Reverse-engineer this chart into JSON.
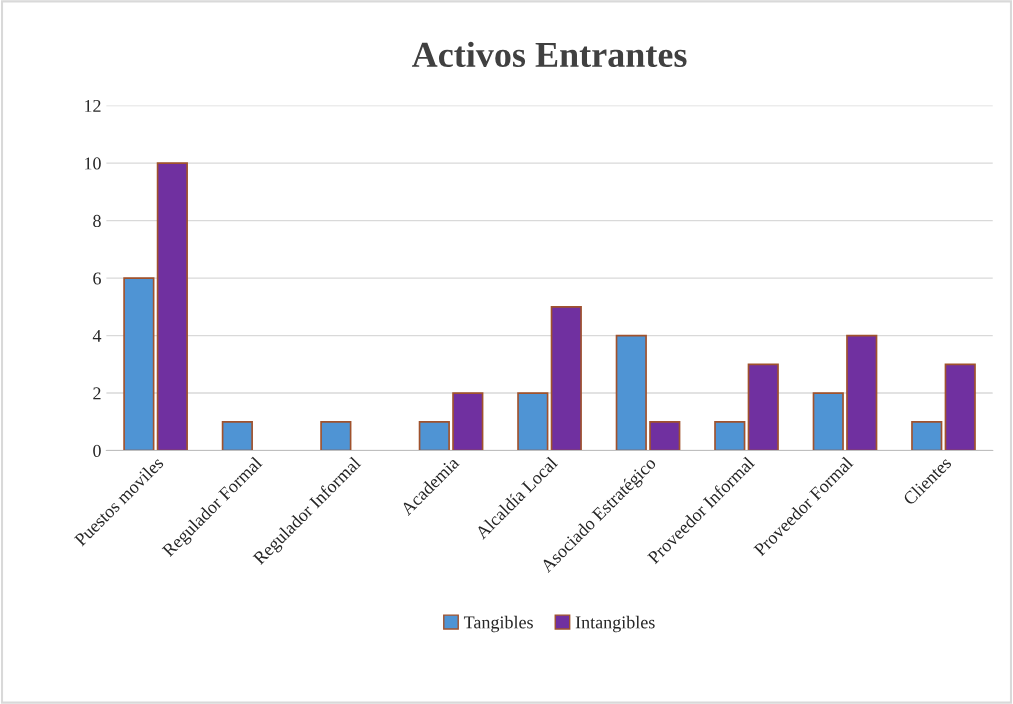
{
  "chart_data": {
    "type": "bar",
    "title": "Activos Entrantes",
    "categories": [
      "Puestos moviles",
      "Regulador Formal",
      "Regulador Informal",
      "Academia",
      "Alcaldía Local",
      "Asociado Estratégico",
      "Proveedor Informal",
      "Proveedor Formal",
      "Clientes"
    ],
    "series": [
      {
        "name": "Tangibles",
        "color": "#4f94d4",
        "values": [
          6,
          1,
          1,
          1,
          2,
          4,
          1,
          2,
          1
        ]
      },
      {
        "name": "Intangibles",
        "color": "#7030a0",
        "values": [
          10,
          null,
          null,
          2,
          5,
          1,
          3,
          4,
          3
        ]
      }
    ],
    "ylim": [
      0,
      12
    ],
    "yticks": [
      0,
      2,
      4,
      6,
      8,
      10,
      12
    ],
    "grid": "y",
    "legend": "bottom"
  }
}
